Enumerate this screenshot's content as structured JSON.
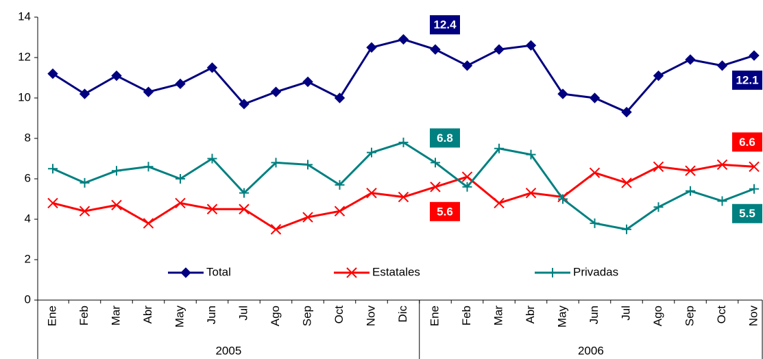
{
  "chart_data": {
    "type": "line",
    "category_groups": [
      {
        "label": "2005",
        "categories": [
          "Ene",
          "Feb",
          "Mar",
          "Abr",
          "May",
          "Jun",
          "Jul",
          "Ago",
          "Sep",
          "Oct",
          "Nov",
          "Dic"
        ]
      },
      {
        "label": "2006",
        "categories": [
          "Ene",
          "Feb",
          "Mar",
          "Abr",
          "May",
          "Jun",
          "Jul",
          "Ago",
          "Sep",
          "Oct",
          "Nov"
        ]
      }
    ],
    "series": [
      {
        "name": "Total",
        "color": "#000080",
        "marker": "diamond",
        "values": [
          11.2,
          10.2,
          11.1,
          10.3,
          10.7,
          11.5,
          9.7,
          10.3,
          10.8,
          10.0,
          12.5,
          12.9,
          12.4,
          11.6,
          12.4,
          12.6,
          10.2,
          10.0,
          9.3,
          11.1,
          11.9,
          11.6,
          12.1
        ]
      },
      {
        "name": "Estatales",
        "color": "#ff0000",
        "marker": "x",
        "values": [
          4.8,
          4.4,
          4.7,
          3.8,
          4.8,
          4.5,
          4.5,
          3.5,
          4.1,
          4.4,
          5.3,
          5.1,
          5.6,
          6.1,
          4.8,
          5.3,
          5.1,
          6.3,
          5.8,
          6.6,
          6.4,
          6.7,
          6.6
        ]
      },
      {
        "name": "Privadas",
        "color": "#008080",
        "marker": "plus",
        "values": [
          6.5,
          5.8,
          6.4,
          6.6,
          6.0,
          7.0,
          5.3,
          6.8,
          6.7,
          5.7,
          7.3,
          7.8,
          6.8,
          5.6,
          7.5,
          7.2,
          5.0,
          3.8,
          3.5,
          4.6,
          5.4,
          4.9,
          5.5
        ]
      }
    ],
    "ylim": [
      0,
      14
    ],
    "yticks": [
      0,
      2,
      4,
      6,
      8,
      10,
      12,
      14
    ],
    "grid": false,
    "legend": "bottom"
  }
}
